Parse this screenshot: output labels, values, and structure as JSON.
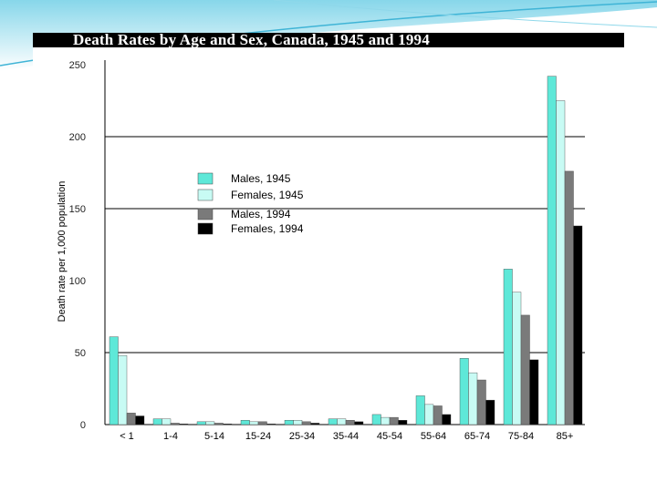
{
  "chart_data": {
    "type": "bar",
    "title": "Death Rates by Age and Sex, Canada, 1945 and 1994",
    "xlabel": "",
    "ylabel": "Death rate per 1,000 population",
    "ylim": [
      0,
      250
    ],
    "yticks": [
      0,
      50,
      100,
      150,
      200,
      250
    ],
    "gridlines": [
      50,
      150,
      200
    ],
    "legend_position": "upper-left",
    "categories": [
      "< 1",
      "1-4",
      "5-14",
      "15-24",
      "25-34",
      "35-44",
      "45-54",
      "55-64",
      "65-74",
      "75-84",
      "85+"
    ],
    "series": [
      {
        "name": "Males, 1945",
        "color": "#5ee8d8",
        "values": [
          61,
          4,
          2,
          3,
          3,
          4,
          7,
          20,
          46,
          108,
          242
        ]
      },
      {
        "name": "Females, 1945",
        "color": "#c8fbf4",
        "values": [
          48,
          4,
          2,
          2,
          3,
          4,
          5,
          14,
          36,
          92,
          225
        ]
      },
      {
        "name": "Males, 1994",
        "color": "#7a7a7a",
        "values": [
          8,
          1,
          1,
          2,
          2,
          3,
          5,
          13,
          31,
          76,
          176
        ]
      },
      {
        "name": "Females, 1994",
        "color": "#000000",
        "values": [
          6,
          0.5,
          0.5,
          0.5,
          1,
          2,
          3,
          7,
          17,
          45,
          138
        ]
      }
    ]
  }
}
